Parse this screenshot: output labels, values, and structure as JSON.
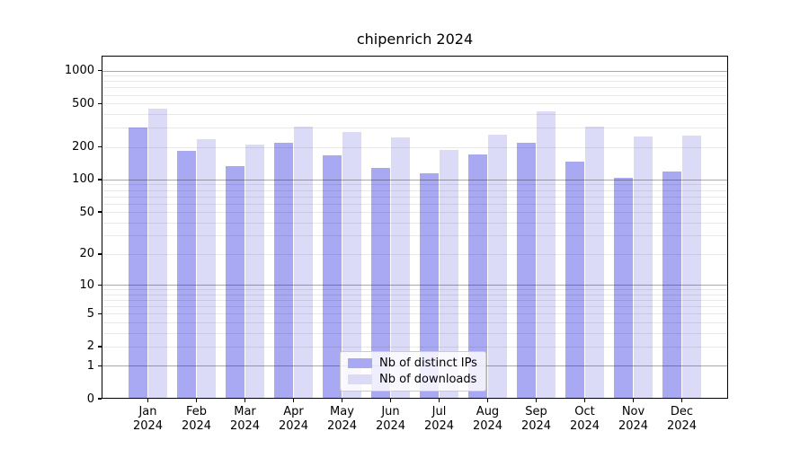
{
  "figure": {
    "title": "chipenrich 2024"
  },
  "chart_data": {
    "type": "bar",
    "title": "chipenrich 2024",
    "xlabel": "",
    "ylabel": "",
    "categories": [
      {
        "month": "Jan",
        "year": "2024"
      },
      {
        "month": "Feb",
        "year": "2024"
      },
      {
        "month": "Mar",
        "year": "2024"
      },
      {
        "month": "Apr",
        "year": "2024"
      },
      {
        "month": "May",
        "year": "2024"
      },
      {
        "month": "Jun",
        "year": "2024"
      },
      {
        "month": "Jul",
        "year": "2024"
      },
      {
        "month": "Aug",
        "year": "2024"
      },
      {
        "month": "Sep",
        "year": "2024"
      },
      {
        "month": "Oct",
        "year": "2024"
      },
      {
        "month": "Nov",
        "year": "2024"
      },
      {
        "month": "Dec",
        "year": "2024"
      }
    ],
    "series": [
      {
        "name": "Nb of distinct IPs",
        "color": "#a8a8f3",
        "values": [
          300,
          183,
          132,
          219,
          168,
          128,
          114,
          169,
          218,
          146,
          104,
          119
        ]
      },
      {
        "name": "Nb of downloads",
        "color": "#dbdbf8",
        "values": [
          450,
          236,
          210,
          309,
          272,
          243,
          187,
          258,
          426,
          308,
          249,
          255
        ]
      }
    ],
    "y_axis": {
      "scale": "log1p",
      "ticks": [
        0,
        1,
        2,
        5,
        10,
        20,
        50,
        100,
        200,
        500,
        1000
      ],
      "max": 1368,
      "major_gridline_values": [
        1,
        10,
        100,
        1000
      ],
      "minor_gridline_base": [
        2,
        3,
        4,
        5,
        6,
        7,
        8,
        9
      ]
    },
    "grid": true,
    "legend_position": "lower center inside"
  }
}
